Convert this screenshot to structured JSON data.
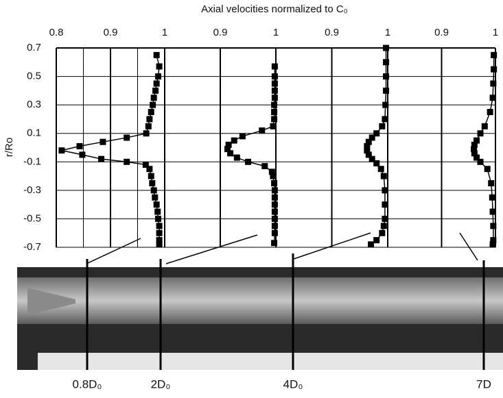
{
  "chart_data": [
    {
      "type": "line",
      "title": "Axial velocities normalized to C₀",
      "ylabel": "r/Ro",
      "label": "0.8D₀",
      "xlim": [
        0.8,
        1
      ],
      "xticks": [
        0.8,
        0.9,
        1
      ],
      "xgrid": [
        0.85,
        0.9,
        0.95
      ],
      "ylim": [
        -0.7,
        0.7
      ],
      "yticks": [
        0.7,
        0.5,
        0.3,
        0.1,
        -0.1,
        -0.3,
        -0.5,
        -0.7
      ],
      "y": [
        0.65,
        0.57,
        0.5,
        0.45,
        0.4,
        0.35,
        0.3,
        0.25,
        0.2,
        0.15,
        0.1,
        0.07,
        0.04,
        0.01,
        -0.02,
        -0.05,
        -0.08,
        -0.1,
        -0.12,
        -0.15,
        -0.2,
        -0.25,
        -0.3,
        -0.35,
        -0.4,
        -0.45,
        -0.5,
        -0.55,
        -0.6,
        -0.65,
        -0.68
      ],
      "values": [
        0.985,
        0.99,
        0.988,
        0.985,
        0.983,
        0.98,
        0.978,
        0.975,
        0.972,
        0.97,
        0.966,
        0.93,
        0.886,
        0.843,
        0.81,
        0.848,
        0.883,
        0.93,
        0.965,
        0.972,
        0.975,
        0.977,
        0.98,
        0.982,
        0.985,
        0.987,
        0.988,
        0.99,
        0.99,
        0.99,
        0.99
      ]
    },
    {
      "type": "line",
      "label": "2D₀",
      "xlim": [
        0.8,
        1
      ],
      "xticks": [
        0.9,
        1
      ],
      "xgrid": [
        0.9
      ],
      "ylim": [
        -0.7,
        0.7
      ],
      "y": [
        0.57,
        0.5,
        0.45,
        0.4,
        0.35,
        0.3,
        0.25,
        0.2,
        0.15,
        0.12,
        0.08,
        0.05,
        0.02,
        -0.01,
        -0.04,
        -0.07,
        -0.1,
        -0.13,
        -0.17,
        -0.2,
        -0.25,
        -0.3,
        -0.35,
        -0.4,
        -0.45,
        -0.5,
        -0.55,
        -0.6,
        -0.67
      ],
      "values": [
        0.998,
        0.998,
        0.998,
        0.998,
        0.998,
        0.997,
        0.997,
        0.997,
        0.995,
        0.975,
        0.94,
        0.925,
        0.915,
        0.913,
        0.918,
        0.93,
        0.95,
        0.98,
        0.993,
        0.995,
        0.997,
        0.998,
        0.998,
        0.998,
        0.998,
        0.998,
        0.998,
        0.998,
        0.997
      ]
    },
    {
      "type": "line",
      "label": "4D₀",
      "xlim": [
        0.8,
        1
      ],
      "xticks": [
        0.9,
        1
      ],
      "xgrid": [
        0.9
      ],
      "ylim": [
        -0.7,
        0.7
      ],
      "y": [
        0.7,
        0.6,
        0.5,
        0.4,
        0.3,
        0.2,
        0.15,
        0.1,
        0.07,
        0.04,
        0.01,
        -0.02,
        -0.05,
        -0.08,
        -0.11,
        -0.15,
        -0.2,
        -0.3,
        -0.4,
        -0.5,
        -0.55,
        -0.6,
        -0.65,
        -0.68
      ],
      "values": [
        0.997,
        0.997,
        0.997,
        0.997,
        0.996,
        0.995,
        0.99,
        0.98,
        0.972,
        0.966,
        0.963,
        0.963,
        0.966,
        0.972,
        0.98,
        0.988,
        0.993,
        0.995,
        0.995,
        0.995,
        0.993,
        0.99,
        0.98,
        0.97
      ]
    },
    {
      "type": "line",
      "label": "7D",
      "xlim": [
        0.8,
        1
      ],
      "xticks": [
        0.9,
        1
      ],
      "xgrid": [
        0.9
      ],
      "ylim": [
        -0.7,
        0.7
      ],
      "y": [
        0.65,
        0.55,
        0.45,
        0.35,
        0.25,
        0.15,
        0.1,
        0.05,
        0.02,
        -0.01,
        -0.04,
        -0.07,
        -0.1,
        -0.15,
        -0.25,
        -0.35,
        -0.45,
        -0.55,
        -0.65,
        -0.68
      ],
      "values": [
        0.997,
        0.997,
        0.996,
        0.995,
        0.99,
        0.98,
        0.972,
        0.965,
        0.961,
        0.96,
        0.961,
        0.965,
        0.972,
        0.985,
        0.992,
        0.994,
        0.995,
        0.996,
        0.996,
        0.995
      ]
    }
  ]
}
